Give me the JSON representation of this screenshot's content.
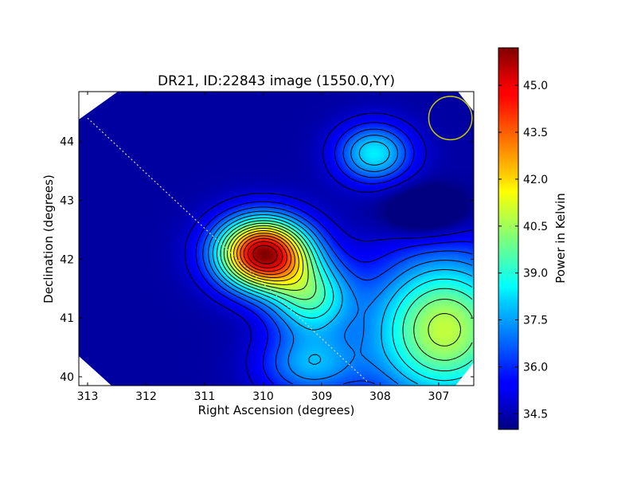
{
  "chart_data": {
    "type": "heatmap",
    "title": "DR21, ID:22843 image (1550.0,YY)",
    "xlabel": "Right Ascension (degrees)",
    "ylabel": "Declination (degrees)",
    "colorbar_label": "Power in Kelvin",
    "xlim": [
      313.15,
      306.4
    ],
    "ylim": [
      39.85,
      44.85
    ],
    "x_ticks": [
      {
        "value": 313,
        "label": "313"
      },
      {
        "value": 312,
        "label": "312"
      },
      {
        "value": 311,
        "label": "311"
      },
      {
        "value": 310,
        "label": "310"
      },
      {
        "value": 309,
        "label": "309"
      },
      {
        "value": 308,
        "label": "308"
      },
      {
        "value": 307,
        "label": "307"
      }
    ],
    "y_ticks": [
      {
        "value": 40,
        "label": "40"
      },
      {
        "value": 41,
        "label": "41"
      },
      {
        "value": 42,
        "label": "42"
      },
      {
        "value": 43,
        "label": "43"
      },
      {
        "value": 44,
        "label": "44"
      }
    ],
    "color_range": [
      34.0,
      46.2
    ],
    "colorbar_ticks": [
      {
        "value": 34.5,
        "label": "34.5"
      },
      {
        "value": 36.0,
        "label": "36.0"
      },
      {
        "value": 37.5,
        "label": "37.5"
      },
      {
        "value": 39.0,
        "label": "39.0"
      },
      {
        "value": 40.5,
        "label": "40.5"
      },
      {
        "value": 42.0,
        "label": "42.0"
      },
      {
        "value": 43.5,
        "label": "43.5"
      },
      {
        "value": 45.0,
        "label": "45.0"
      }
    ],
    "colormap": "jet",
    "contour_color": "#000000",
    "background_level": 34.4,
    "sources": [
      {
        "ra": 310.0,
        "dec": 42.1,
        "amplitude": 11.5,
        "sigma_ra": 0.55,
        "sigma_dec": 0.42
      },
      {
        "ra": 309.2,
        "dec": 41.35,
        "amplitude": 4.5,
        "sigma_ra": 0.5,
        "sigma_dec": 0.45
      },
      {
        "ra": 308.1,
        "dec": 43.8,
        "amplitude": 4.0,
        "sigma_ra": 0.45,
        "sigma_dec": 0.35
      },
      {
        "ra": 306.9,
        "dec": 40.8,
        "amplitude": 6.5,
        "sigma_ra": 0.9,
        "sigma_dec": 0.9
      },
      {
        "ra": 309.2,
        "dec": 40.2,
        "amplitude": 3.0,
        "sigma_ra": 0.6,
        "sigma_dec": 0.4
      },
      {
        "ra": 307.2,
        "dec": 42.8,
        "amplitude": -2.0,
        "sigma_ra": 0.5,
        "sigma_dec": 0.3
      }
    ],
    "contour_levels": [
      35.0,
      35.7,
      36.4,
      37.1,
      37.8,
      38.5,
      39.2,
      39.9,
      40.6,
      41.3,
      42.0,
      42.7,
      43.4,
      44.1,
      44.8,
      45.5
    ],
    "galactic_plane": [
      {
        "ra": 313.0,
        "dec": 44.4
      },
      {
        "ra": 308.2,
        "dec": 39.9
      }
    ],
    "beam": {
      "ra": 306.8,
      "dec": 44.4,
      "radius_deg": 0.37,
      "color": "#c8c800"
    },
    "grid": false
  }
}
